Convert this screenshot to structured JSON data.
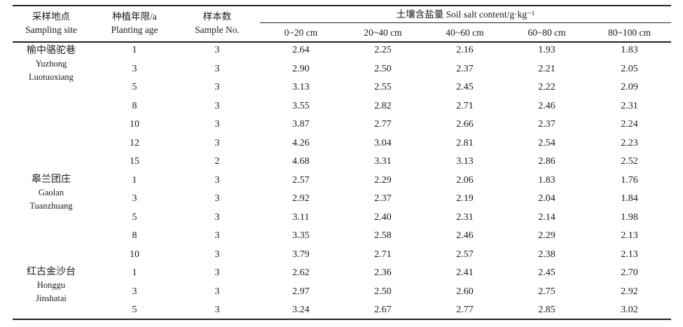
{
  "headers": {
    "site_zh": "采样地点",
    "site_en": "Sampling site",
    "age_zh": "种植年限/a",
    "age_en": "Planting age",
    "n_zh": "样本数",
    "n_en": "Sample No.",
    "salt": "土壤含盐量 Soil salt content/g·kg⁻¹",
    "depths": [
      "0~20 cm",
      "20~40 cm",
      "40~60 cm",
      "60~80 cm",
      "80~100 cm"
    ]
  },
  "sites": [
    {
      "zh": "榆中骆驼巷",
      "en1": "Yuzhong",
      "en2": "Luotuoxiang"
    },
    {
      "zh": "皋兰团庄",
      "en1": "Gaolan",
      "en2": "Tuanzhuang"
    },
    {
      "zh": "红古金沙台",
      "en1": "Honggu",
      "en2": "Jinshatai"
    }
  ],
  "rows": [
    [
      "1",
      "3",
      "2.64",
      "2.25",
      "2.16",
      "1.93",
      "1.83"
    ],
    [
      "3",
      "3",
      "2.90",
      "2.50",
      "2.37",
      "2.21",
      "2.05"
    ],
    [
      "5",
      "3",
      "3.13",
      "2.55",
      "2.45",
      "2.22",
      "2.09"
    ],
    [
      "8",
      "3",
      "3.55",
      "2.82",
      "2.71",
      "2.46",
      "2.31"
    ],
    [
      "10",
      "3",
      "3.87",
      "2.77",
      "2.66",
      "2.37",
      "2.24"
    ],
    [
      "12",
      "3",
      "4.26",
      "3.04",
      "2.81",
      "2.54",
      "2.23"
    ],
    [
      "15",
      "2",
      "4.68",
      "3.31",
      "3.13",
      "2.86",
      "2.52"
    ],
    [
      "1",
      "3",
      "2.57",
      "2.29",
      "2.06",
      "1.83",
      "1.76"
    ],
    [
      "3",
      "3",
      "2.92",
      "2.37",
      "2.19",
      "2.04",
      "1.84"
    ],
    [
      "5",
      "3",
      "3.11",
      "2.40",
      "2.31",
      "2.14",
      "1.98"
    ],
    [
      "8",
      "3",
      "3.35",
      "2.58",
      "2.46",
      "2.29",
      "2.13"
    ],
    [
      "10",
      "3",
      "3.79",
      "2.71",
      "2.57",
      "2.38",
      "2.13"
    ],
    [
      "1",
      "3",
      "2.62",
      "2.36",
      "2.41",
      "2.45",
      "2.70"
    ],
    [
      "3",
      "3",
      "2.97",
      "2.50",
      "2.60",
      "2.75",
      "2.92"
    ],
    [
      "5",
      "3",
      "3.24",
      "2.67",
      "2.77",
      "2.85",
      "3.02"
    ]
  ]
}
